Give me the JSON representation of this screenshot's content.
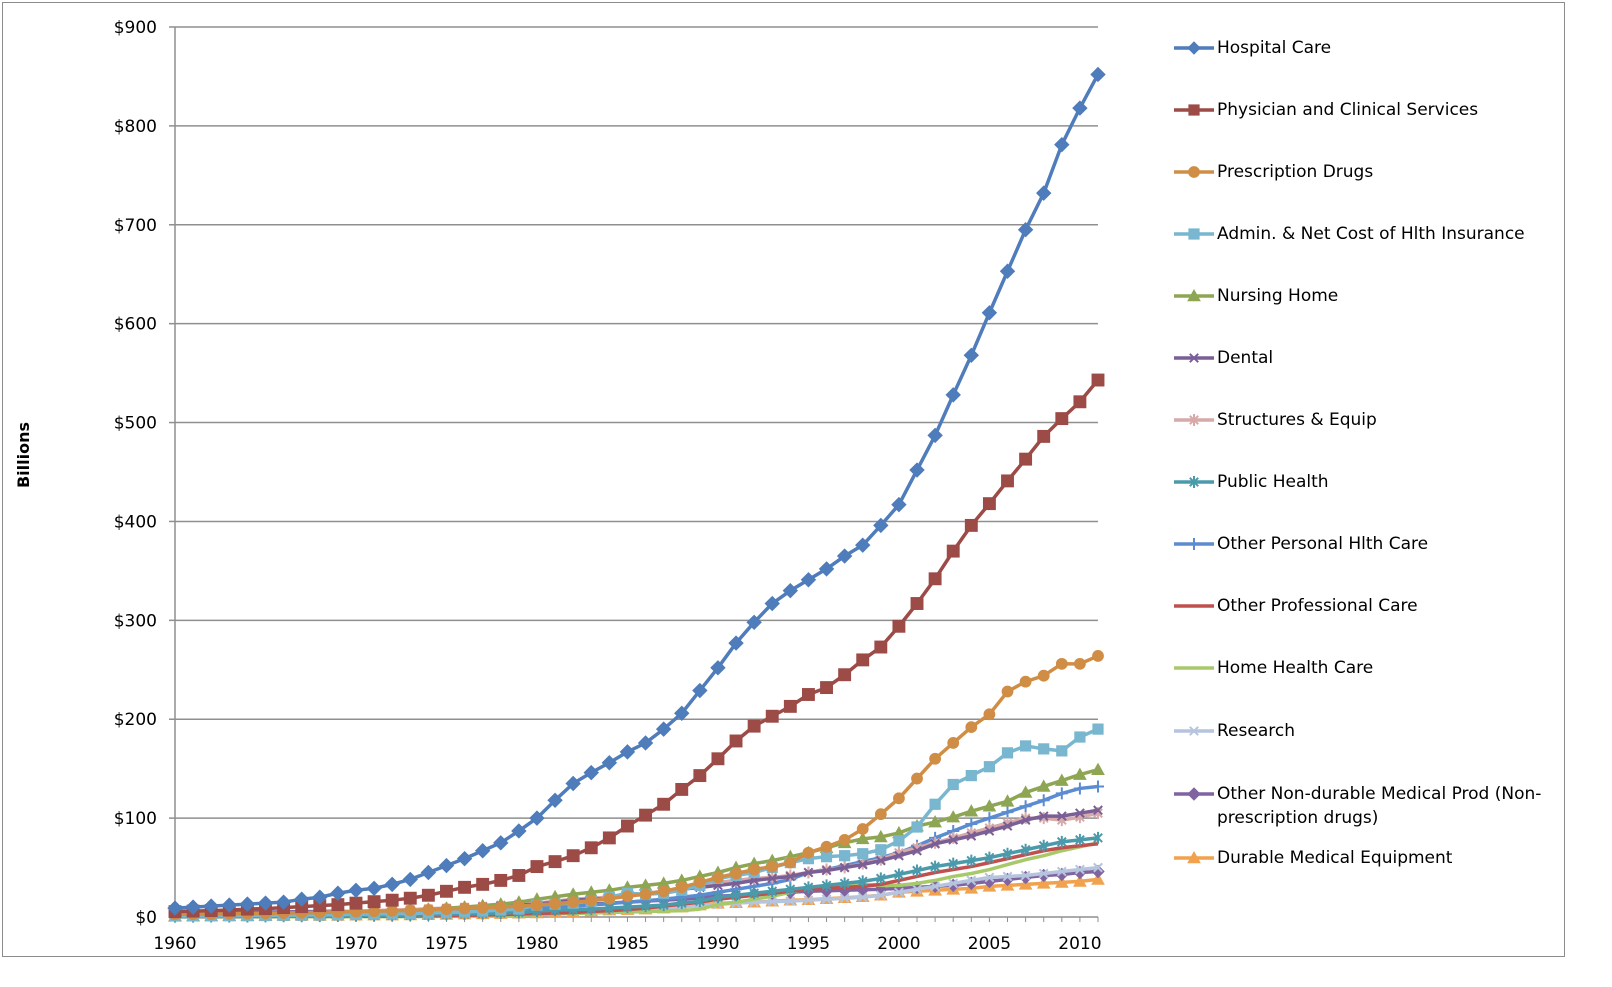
{
  "chart_data": {
    "type": "line",
    "ylabel": "Billions",
    "xlabel": "",
    "ylim": [
      0,
      900
    ],
    "y_ticks": [
      "$0",
      "$100",
      "$200",
      "$300",
      "$400",
      "$500",
      "$600",
      "$700",
      "$800",
      "$900"
    ],
    "y_tick_values": [
      0,
      100,
      200,
      300,
      400,
      500,
      600,
      700,
      800,
      900
    ],
    "x_ticks": [
      "1960",
      "1965",
      "1970",
      "1975",
      "1980",
      "1985",
      "1990",
      "1995",
      "2000",
      "2005",
      "2010"
    ],
    "x_tick_values": [
      1960,
      1965,
      1970,
      1975,
      1980,
      1985,
      1990,
      1995,
      2000,
      2005,
      2010
    ],
    "xlim": [
      1960,
      2011
    ],
    "grid": "horizontal",
    "legend_position": "right",
    "x": [
      1960,
      1961,
      1962,
      1963,
      1964,
      1965,
      1966,
      1967,
      1968,
      1969,
      1970,
      1971,
      1972,
      1973,
      1974,
      1975,
      1976,
      1977,
      1978,
      1979,
      1980,
      1981,
      1982,
      1983,
      1984,
      1985,
      1986,
      1987,
      1988,
      1989,
      1990,
      1991,
      1992,
      1993,
      1994,
      1995,
      1996,
      1997,
      1998,
      1999,
      2000,
      2001,
      2002,
      2003,
      2004,
      2005,
      2006,
      2007,
      2008,
      2009,
      2010,
      2011
    ],
    "series": [
      {
        "name": "Hospital Care",
        "color": "#4f7cba",
        "marker": "diamond",
        "values": [
          9,
          10,
          11,
          12,
          13,
          14,
          15,
          18,
          20,
          24,
          27,
          29,
          33,
          38,
          45,
          52,
          59,
          67,
          75,
          87,
          100,
          118,
          135,
          146,
          156,
          167,
          176,
          190,
          206,
          229,
          252,
          277,
          298,
          317,
          330,
          341,
          352,
          365,
          376,
          396,
          417,
          452,
          487,
          528,
          568,
          611,
          653,
          695,
          732,
          781,
          818,
          852
        ]
      },
      {
        "name": "Physician and Clinical Services",
        "color": "#9c4b47",
        "marker": "square",
        "values": [
          5.4,
          6,
          6.5,
          7,
          8,
          8.5,
          9.5,
          10.5,
          11.5,
          12.5,
          14,
          15.5,
          17,
          19,
          22,
          26,
          30,
          33,
          37,
          42,
          51,
          56,
          62,
          70,
          80,
          92,
          103,
          114,
          129,
          143,
          160,
          178,
          193,
          203,
          213,
          225,
          232,
          245,
          260,
          273,
          294,
          317,
          342,
          370,
          396,
          418,
          441,
          463,
          486,
          504,
          521,
          543
        ]
      },
      {
        "name": "Prescription Drugs",
        "color": "#d08d45",
        "marker": "circle",
        "values": [
          2.7,
          2.9,
          3,
          3.2,
          3.5,
          3.7,
          4,
          4.2,
          4.5,
          5,
          5.5,
          5.9,
          6.3,
          6.7,
          7.2,
          8,
          8.7,
          9.3,
          10,
          11,
          12,
          13.4,
          15,
          16.5,
          18.5,
          21,
          23,
          26,
          30,
          35,
          40,
          44,
          48,
          51,
          55,
          65,
          71,
          78,
          89,
          104,
          120,
          140,
          160,
          176,
          192,
          205,
          228,
          238,
          244,
          256,
          256,
          264
        ]
      },
      {
        "name": "Admin. & Net Cost of Hlth Insurance",
        "color": "#79b6cf",
        "marker": "square",
        "values": [
          1.1,
          1.2,
          1.3,
          1.4,
          1.5,
          1.7,
          1.8,
          2,
          2.1,
          2.4,
          2.7,
          3,
          3.3,
          3.6,
          4,
          4.5,
          5,
          6,
          7,
          8,
          12,
          13,
          14,
          16,
          20,
          24,
          23,
          24,
          27,
          32,
          39,
          42,
          45,
          50,
          55,
          59,
          61,
          62,
          64,
          68,
          77,
          91,
          114,
          134,
          143,
          152,
          166,
          173,
          170,
          168,
          182,
          190
        ]
      },
      {
        "name": "Nursing Home",
        "color": "#8ea653",
        "marker": "triangle",
        "values": [
          0.8,
          1,
          1.2,
          1.4,
          1.6,
          1.8,
          2.1,
          2.6,
          3.1,
          3.6,
          4.2,
          4.8,
          5.6,
          6.5,
          7.5,
          8.7,
          10,
          11.5,
          13,
          15,
          18,
          20.5,
          23,
          25,
          27,
          30,
          32,
          34,
          37,
          41,
          45,
          50,
          54,
          57,
          61,
          65,
          70,
          75,
          79,
          81,
          85,
          92,
          96,
          101,
          107,
          112,
          117,
          126,
          132,
          138,
          144,
          149
        ]
      },
      {
        "name": "Dental",
        "color": "#7a5f96",
        "marker": "x",
        "values": [
          2,
          2.1,
          2.2,
          2.3,
          2.5,
          2.8,
          3,
          3.3,
          3.6,
          4.2,
          4.7,
          5,
          5.6,
          6.3,
          7,
          8,
          9,
          10,
          11,
          12,
          13,
          15,
          17,
          18,
          19,
          22,
          23,
          25,
          28,
          30,
          32,
          34,
          37,
          39,
          41,
          45,
          47,
          50,
          53,
          57,
          62,
          67,
          74,
          78,
          82,
          87,
          92,
          98,
          102,
          102,
          105,
          108
        ]
      },
      {
        "name": "Structures & Equip",
        "color": "#d7a9a8",
        "marker": "asterisk",
        "values": [
          2,
          2.2,
          2.4,
          2.7,
          3,
          3.3,
          3.7,
          4.2,
          4.7,
          5.3,
          6,
          6.5,
          7,
          7.5,
          8.3,
          9,
          10,
          11,
          12,
          13,
          14,
          16,
          18,
          19,
          20,
          22,
          24,
          26,
          28,
          31,
          35,
          37,
          39,
          40,
          42,
          45,
          48,
          50,
          54,
          58,
          65,
          70,
          75,
          80,
          85,
          90,
          95,
          100,
          100,
          98,
          101,
          105
        ]
      },
      {
        "name": "Public Health",
        "color": "#4a9aab",
        "marker": "asterisk",
        "values": [
          0.4,
          0.4,
          0.5,
          0.5,
          0.5,
          0.6,
          0.7,
          0.8,
          0.9,
          1.1,
          1.4,
          1.5,
          1.7,
          1.9,
          2.2,
          2.6,
          3,
          3.4,
          4,
          4.6,
          6,
          7,
          7.5,
          8,
          9,
          10,
          11,
          12,
          14,
          16,
          20,
          22,
          24,
          26,
          28,
          30,
          32,
          34,
          36,
          39,
          43,
          47,
          51,
          54,
          57,
          60,
          64,
          68,
          72,
          76,
          78,
          80
        ]
      },
      {
        "name": "Other Personal Hlth Care",
        "color": "#5b8cd1",
        "marker": "plus",
        "values": [
          2,
          2,
          2,
          2,
          2.2,
          2.4,
          2.6,
          2.8,
          3,
          3.4,
          4,
          4.3,
          4.8,
          5.2,
          5.8,
          6.5,
          7,
          7.5,
          8,
          8.5,
          9,
          10,
          11,
          12,
          13.5,
          15,
          16.5,
          18,
          20,
          22,
          25,
          28,
          31,
          34,
          38,
          45,
          48,
          52,
          56,
          60,
          65,
          72,
          80,
          87,
          94,
          100,
          106,
          112,
          118,
          125,
          130,
          132
        ]
      },
      {
        "name": "Other Professional Care",
        "color": "#c0504d",
        "marker": "none",
        "values": [
          0.4,
          0.4,
          0.5,
          0.5,
          0.6,
          0.6,
          0.7,
          0.7,
          0.8,
          0.9,
          0.7,
          0.8,
          0.9,
          1,
          1.2,
          1.4,
          1.7,
          2,
          2.4,
          3,
          3.6,
          4,
          4.5,
          5.5,
          6.5,
          7.5,
          9,
          11,
          13,
          15,
          18,
          20,
          22,
          24,
          26,
          28,
          29,
          30,
          31,
          33,
          37,
          41,
          45,
          48,
          51,
          55,
          59,
          63,
          67,
          70,
          72,
          74
        ]
      },
      {
        "name": "Home Health Care",
        "color": "#a8c96a",
        "marker": "none",
        "values": [
          0.1,
          0.1,
          0.1,
          0.1,
          0.1,
          0.1,
          0.1,
          0.2,
          0.2,
          0.2,
          0.2,
          0.3,
          0.3,
          0.4,
          0.5,
          0.6,
          0.8,
          1,
          1.3,
          1.6,
          2.4,
          3,
          3.5,
          4,
          4.5,
          5,
          5.5,
          6,
          6.5,
          8,
          12.6,
          15,
          18,
          21,
          25,
          29,
          31,
          33,
          33,
          32,
          32,
          34,
          37,
          41,
          44,
          48,
          53,
          58,
          62,
          67,
          71,
          75
        ]
      },
      {
        "name": "Research",
        "color": "#b6c4de",
        "marker": "x",
        "values": [
          0.7,
          0.8,
          1,
          1.1,
          1.3,
          1.4,
          1.5,
          1.6,
          1.7,
          1.8,
          2,
          2.1,
          2.2,
          2.4,
          2.6,
          3.3,
          3.6,
          3.9,
          4.4,
          4.9,
          5.4,
          5.7,
          5.8,
          6.1,
          6.8,
          7.8,
          8.5,
          9.5,
          10.5,
          11.5,
          12.7,
          14,
          15,
          15.5,
          16,
          17,
          18,
          19,
          20,
          22,
          25,
          28,
          31,
          34,
          37,
          40,
          41,
          42,
          44,
          46,
          48,
          50
        ]
      },
      {
        "name": "Other Non-durable Medical Prod (Non-prescription drugs)",
        "color": "#8064a2",
        "marker": "diamond",
        "values": [
          4,
          4.2,
          4.4,
          4.6,
          4.8,
          5,
          5.2,
          5.4,
          5.6,
          5.9,
          5.2,
          5.5,
          5.8,
          6.2,
          6.6,
          7,
          7.5,
          8,
          8.6,
          9.2,
          10,
          11,
          12,
          13,
          14,
          15,
          16,
          17,
          18,
          19.5,
          21,
          22,
          23,
          24,
          25,
          26,
          26.5,
          27,
          27.5,
          28,
          29,
          30,
          31,
          32,
          34,
          36,
          38,
          40,
          42,
          43,
          45,
          46
        ]
      },
      {
        "name": "Durable Medical Equipment",
        "color": "#f0a24f",
        "marker": "triangle",
        "values": [
          0.7,
          0.8,
          0.9,
          1,
          1.1,
          1.2,
          1.3,
          1.4,
          1.5,
          1.6,
          1.8,
          1.9,
          2,
          2.1,
          2.3,
          2.6,
          2.9,
          3.2,
          3.5,
          3.9,
          4.1,
          4.6,
          5,
          6,
          7,
          7.5,
          8,
          9,
          10,
          12,
          13.8,
          14.5,
          15,
          16,
          17,
          17.5,
          18.5,
          19.5,
          20.5,
          22,
          25,
          26,
          27,
          28,
          29,
          31,
          32,
          33,
          34,
          35,
          36,
          38
        ]
      }
    ]
  }
}
